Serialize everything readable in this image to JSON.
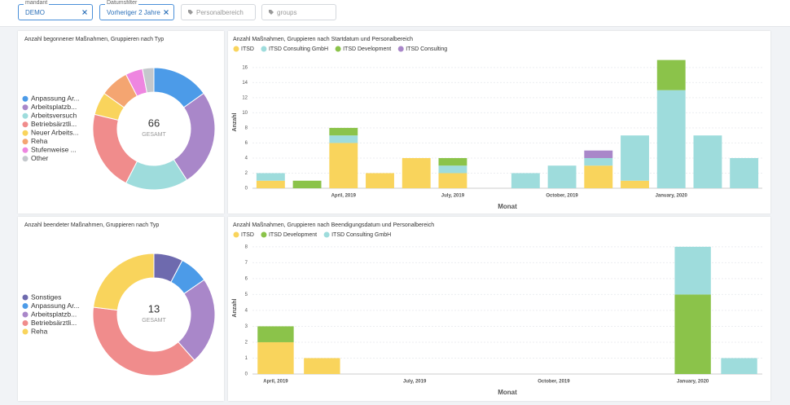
{
  "filters": [
    {
      "label": "mandant",
      "value": "DEMO"
    },
    {
      "label": "Datumsfilter",
      "value": "Vorheriger 2 Jahre"
    },
    {
      "placeholder": "Personalbereich"
    },
    {
      "placeholder": "groups"
    }
  ],
  "chart_data": [
    {
      "type": "donut",
      "title": "Anzahl begonnener Maßnahmen, Gruppieren nach Typ",
      "total": 66,
      "center_label": "GESAMT",
      "categories": [
        "Anpassung Ar...",
        "Arbeitsplatzb...",
        "Arbeitsversuch",
        "Betriebsärztli...",
        "Neuer Arbeits...",
        "Reha",
        "Stufenweise ...",
        "Other"
      ],
      "values": [
        10,
        17,
        11,
        14,
        4,
        5,
        3,
        2
      ],
      "colors": [
        "#4c9be8",
        "#a987c9",
        "#9edcdc",
        "#f08c8c",
        "#f9d45c",
        "#f4a571",
        "#ee86e0",
        "#c4c8cc"
      ]
    },
    {
      "type": "bar",
      "title": "Anzahl Maßnahmen, Gruppieren nach Startdatum und Personalbereich",
      "x_label": "Monat",
      "y_label": "Anzahl",
      "categories": [
        null,
        null,
        "April, 2019",
        null,
        null,
        "July, 2019",
        null,
        null,
        "October, 2019",
        null,
        null,
        "January, 2020",
        null,
        null
      ],
      "series": [
        {
          "name": "ITSD",
          "color": "#f9d45c",
          "values": [
            1,
            null,
            6,
            2,
            4,
            2,
            null,
            null,
            null,
            3,
            1,
            null,
            null,
            null
          ]
        },
        {
          "name": "ITSD Consulting GmbH",
          "color": "#9edcdc",
          "values": [
            1,
            null,
            1,
            null,
            null,
            1,
            null,
            2,
            3,
            1,
            6,
            13,
            7,
            4
          ]
        },
        {
          "name": "ITSD Development",
          "color": "#8bc34a",
          "values": [
            null,
            1,
            1,
            null,
            null,
            1,
            null,
            null,
            null,
            null,
            null,
            4,
            null,
            null
          ]
        },
        {
          "name": "ITSD Consulting",
          "color": "#a987c9",
          "values": [
            null,
            null,
            null,
            null,
            null,
            null,
            null,
            null,
            null,
            1,
            null,
            null,
            null,
            null
          ]
        }
      ],
      "ylim": [
        0,
        17.5
      ],
      "yticks": [
        0,
        2,
        4,
        6,
        8,
        10,
        12,
        14,
        16
      ],
      "grid": true
    },
    {
      "type": "donut",
      "title": "Anzahl beendeter Maßnahmen, Gruppieren nach Typ",
      "total": 13,
      "center_label": "GESAMT",
      "categories": [
        "Sonstiges",
        "Anpassung Ar...",
        "Arbeitsplatzb...",
        "Betriebsärztli...",
        "Reha"
      ],
      "values": [
        1,
        1,
        3,
        5,
        3
      ],
      "colors": [
        "#6e6aae",
        "#4c9be8",
        "#a987c9",
        "#f08c8c",
        "#f9d45c"
      ]
    },
    {
      "type": "bar",
      "title": "Anzahl Maßnahmen, Gruppieren nach Beendigungsdatum und Personalbereich",
      "x_label": "Monat",
      "y_label": "Anzahl",
      "categories": [
        "April, 2019",
        null,
        null,
        "July, 2019",
        null,
        null,
        "October, 2019",
        null,
        null,
        "January, 2020",
        null
      ],
      "series": [
        {
          "name": "ITSD",
          "color": "#f9d45c",
          "values": [
            2,
            1,
            null,
            null,
            null,
            null,
            null,
            null,
            null,
            null,
            null
          ]
        },
        {
          "name": "ITSD Development",
          "color": "#8bc34a",
          "values": [
            1,
            null,
            null,
            null,
            null,
            null,
            null,
            null,
            null,
            5,
            null
          ]
        },
        {
          "name": "ITSD Consulting GmbH",
          "color": "#9edcdc",
          "values": [
            null,
            null,
            null,
            null,
            null,
            null,
            null,
            null,
            null,
            3,
            1
          ]
        }
      ],
      "ylim": [
        0,
        8.3
      ],
      "yticks": [
        0,
        1,
        2,
        3,
        4,
        5,
        6,
        7,
        8
      ],
      "grid": true
    }
  ]
}
